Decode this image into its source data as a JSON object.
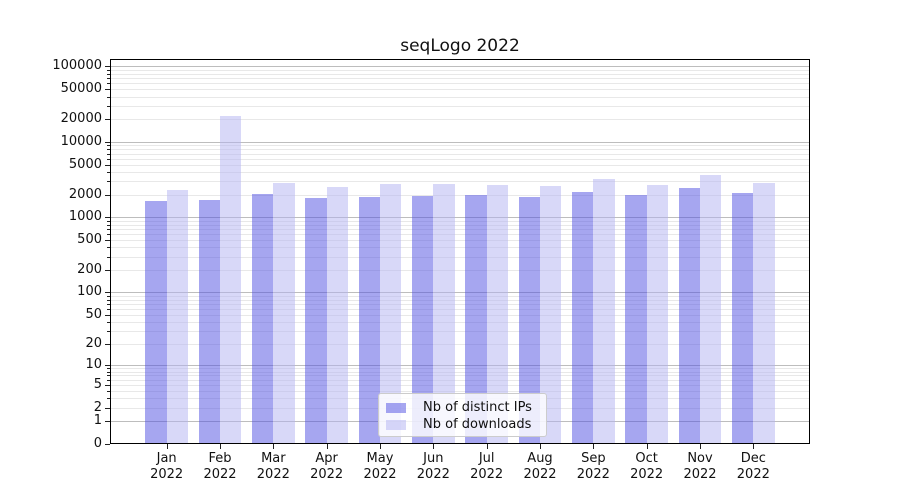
{
  "chart_data": {
    "type": "bar",
    "title": "seqLogo 2022",
    "categories": [
      "Jan",
      "Feb",
      "Mar",
      "Apr",
      "May",
      "Jun",
      "Jul",
      "Aug",
      "Sep",
      "Oct",
      "Nov",
      "Dec"
    ],
    "category_year": "2022",
    "series": [
      {
        "name": "Nb of distinct IPs",
        "values": [
          1660,
          1720,
          2020,
          1820,
          1840,
          1930,
          1980,
          1880,
          2180,
          1960,
          2470,
          2080
        ]
      },
      {
        "name": "Nb of downloads",
        "values": [
          2320,
          22000,
          2820,
          2500,
          2790,
          2740,
          2720,
          2600,
          3190,
          2710,
          3640,
          2880
        ]
      }
    ],
    "y_scale": "log10(value+1)",
    "y_tick_values": [
      0,
      1,
      2,
      5,
      10,
      20,
      50,
      100,
      200,
      500,
      1000,
      2000,
      5000,
      10000,
      20000,
      50000,
      100000
    ],
    "y_tick_labels": [
      "0",
      "1",
      "2",
      "5",
      "10",
      "20",
      "50",
      "100",
      "200",
      "500",
      "1000",
      "2000",
      "5000",
      "10000",
      "20000",
      "50000",
      "100000"
    ],
    "ylim": [
      0,
      125000
    ],
    "grid": "horizontal log minor+major, drawn under semi-transparent bars",
    "legend_position": "bottom-center"
  },
  "colors": {
    "bar_ips": "rgba(77,77,225,0.5)",
    "bar_downloads": "rgba(177,177,241,0.5)",
    "grid_minor": "#e8e8e8",
    "grid_major": "#bdbdbd",
    "axis": "#000000",
    "text": "#111111"
  }
}
